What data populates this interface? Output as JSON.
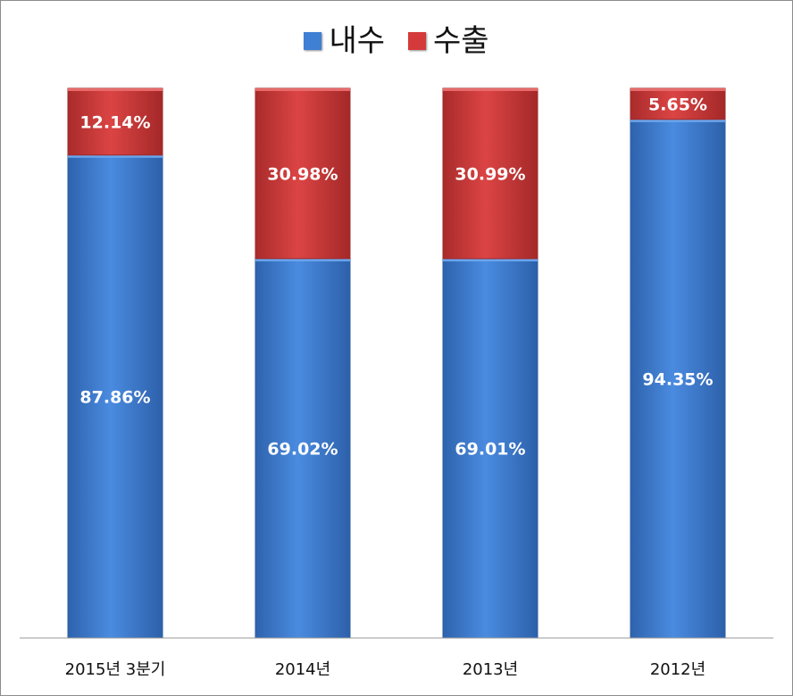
{
  "chart_data": {
    "type": "bar",
    "stacked": true,
    "categories": [
      "2015년 3분기",
      "2014년",
      "2013년",
      "2012년"
    ],
    "series": [
      {
        "name": "내수",
        "values": [
          87.86,
          69.02,
          69.01,
          94.35
        ],
        "labels": [
          "87.86%",
          "69.02%",
          "69.01%",
          "94.35%"
        ],
        "color": "#3f7fd4"
      },
      {
        "name": "수출",
        "values": [
          12.14,
          30.98,
          30.99,
          5.65
        ],
        "labels": [
          "12.14%",
          "30.98%",
          "30.99%",
          "5.65%"
        ],
        "color": "#d43a3a"
      }
    ],
    "ylim": [
      0,
      100
    ],
    "legend": "top-center",
    "grid": false
  }
}
